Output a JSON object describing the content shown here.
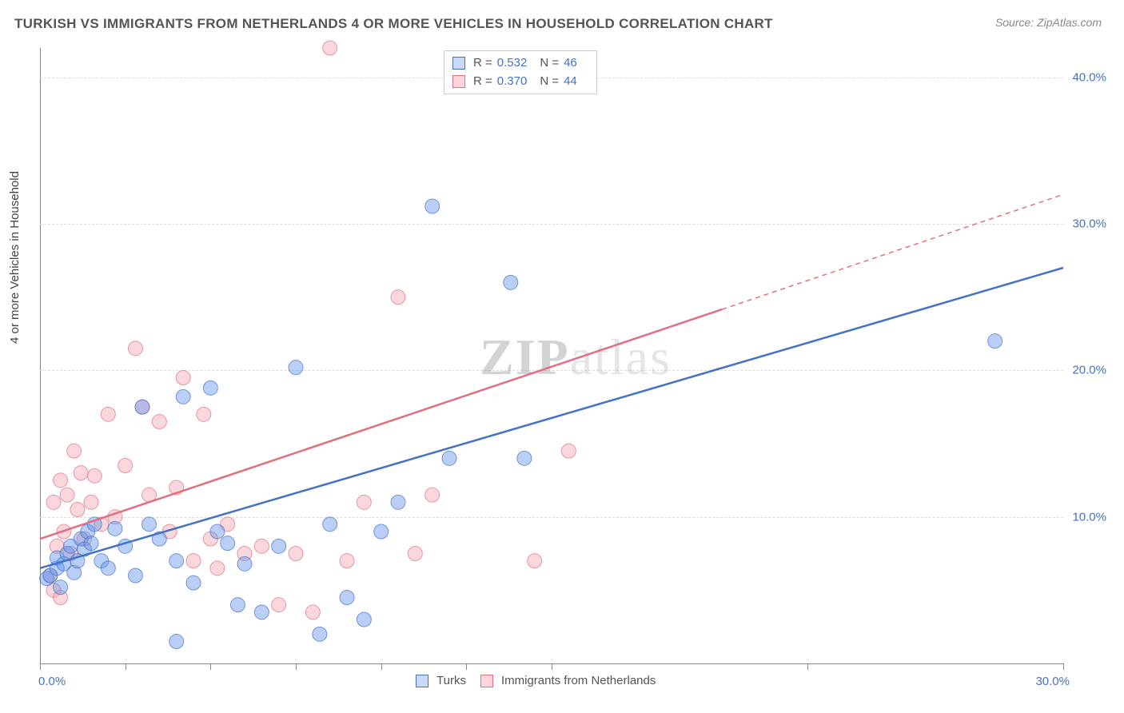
{
  "title": "TURKISH VS IMMIGRANTS FROM NETHERLANDS 4 OR MORE VEHICLES IN HOUSEHOLD CORRELATION CHART",
  "source": "Source: ZipAtlas.com",
  "y_axis_label": "4 or more Vehicles in Household",
  "watermark_zip": "ZIP",
  "watermark_atlas": "atlas",
  "chart": {
    "type": "scatter",
    "background_color": "#ffffff",
    "grid_color": "#dddddd",
    "axis_color": "#888888",
    "xlim": [
      0,
      30
    ],
    "ylim": [
      0,
      42
    ],
    "x_ticks": [
      0,
      2.5,
      5,
      7.5,
      10,
      12.5,
      15,
      22.5,
      30
    ],
    "x_tick_labels_shown": {
      "0": "0.0%",
      "30": "30.0%"
    },
    "y_grid": [
      10,
      20,
      30,
      40
    ],
    "y_tick_labels": {
      "10": "10.0%",
      "20": "20.0%",
      "30": "30.0%",
      "40": "40.0%"
    },
    "marker_radius": 9,
    "marker_opacity": 0.45,
    "trend_line_width": 2.5,
    "series": {
      "turks": {
        "label": "Turks",
        "color": "#6495ed",
        "stroke": "#4472c4",
        "R": "0.532",
        "N": "46",
        "trend": {
          "x1": 0,
          "y1": 6.5,
          "x2": 30,
          "y2": 27,
          "solid_until": 30
        },
        "points": [
          [
            0.2,
            5.8
          ],
          [
            0.3,
            6.0
          ],
          [
            0.5,
            6.5
          ],
          [
            0.5,
            7.2
          ],
          [
            0.6,
            5.2
          ],
          [
            0.7,
            6.8
          ],
          [
            0.8,
            7.5
          ],
          [
            0.9,
            8.0
          ],
          [
            1.0,
            6.2
          ],
          [
            1.1,
            7.0
          ],
          [
            1.2,
            8.5
          ],
          [
            1.3,
            7.8
          ],
          [
            1.4,
            9.0
          ],
          [
            1.5,
            8.2
          ],
          [
            1.6,
            9.5
          ],
          [
            1.8,
            7.0
          ],
          [
            2.0,
            6.5
          ],
          [
            2.2,
            9.2
          ],
          [
            2.5,
            8.0
          ],
          [
            2.8,
            6.0
          ],
          [
            3.0,
            17.5
          ],
          [
            3.2,
            9.5
          ],
          [
            3.5,
            8.5
          ],
          [
            4.0,
            7.0
          ],
          [
            4.2,
            18.2
          ],
          [
            4.5,
            5.5
          ],
          [
            5.0,
            18.8
          ],
          [
            5.2,
            9.0
          ],
          [
            5.5,
            8.2
          ],
          [
            5.8,
            4.0
          ],
          [
            6.0,
            6.8
          ],
          [
            6.5,
            3.5
          ],
          [
            7.0,
            8.0
          ],
          [
            7.5,
            20.2
          ],
          [
            8.2,
            2.0
          ],
          [
            8.5,
            9.5
          ],
          [
            9.0,
            4.5
          ],
          [
            9.5,
            3.0
          ],
          [
            10.0,
            9.0
          ],
          [
            10.5,
            11.0
          ],
          [
            11.5,
            31.2
          ],
          [
            12.0,
            14.0
          ],
          [
            13.8,
            26.0
          ],
          [
            14.2,
            14.0
          ],
          [
            28.0,
            22.0
          ],
          [
            4.0,
            1.5
          ]
        ]
      },
      "netherlands": {
        "label": "Immigrants from Netherlands",
        "color": "#f4a6b4",
        "stroke": "#e07080",
        "R": "0.370",
        "N": "44",
        "trend": {
          "x1": 0,
          "y1": 8.5,
          "x2": 30,
          "y2": 32,
          "solid_until": 20
        },
        "points": [
          [
            0.3,
            6.0
          ],
          [
            0.4,
            11.0
          ],
          [
            0.5,
            8.0
          ],
          [
            0.6,
            12.5
          ],
          [
            0.7,
            9.0
          ],
          [
            0.8,
            11.5
          ],
          [
            0.9,
            7.5
          ],
          [
            1.0,
            14.5
          ],
          [
            1.1,
            10.5
          ],
          [
            1.2,
            13.0
          ],
          [
            1.3,
            8.5
          ],
          [
            1.5,
            11.0
          ],
          [
            1.6,
            12.8
          ],
          [
            1.8,
            9.5
          ],
          [
            2.0,
            17.0
          ],
          [
            2.2,
            10.0
          ],
          [
            2.5,
            13.5
          ],
          [
            2.8,
            21.5
          ],
          [
            3.0,
            17.5
          ],
          [
            3.2,
            11.5
          ],
          [
            3.5,
            16.5
          ],
          [
            3.8,
            9.0
          ],
          [
            4.0,
            12.0
          ],
          [
            4.2,
            19.5
          ],
          [
            4.5,
            7.0
          ],
          [
            4.8,
            17.0
          ],
          [
            5.0,
            8.5
          ],
          [
            5.2,
            6.5
          ],
          [
            5.5,
            9.5
          ],
          [
            6.0,
            7.5
          ],
          [
            6.5,
            8.0
          ],
          [
            7.0,
            4.0
          ],
          [
            7.5,
            7.5
          ],
          [
            8.0,
            3.5
          ],
          [
            8.5,
            42.0
          ],
          [
            9.0,
            7.0
          ],
          [
            9.5,
            11.0
          ],
          [
            10.5,
            25.0
          ],
          [
            11.0,
            7.5
          ],
          [
            11.5,
            11.5
          ],
          [
            14.5,
            7.0
          ],
          [
            15.5,
            14.5
          ],
          [
            0.4,
            5.0
          ],
          [
            0.6,
            4.5
          ]
        ]
      }
    }
  }
}
